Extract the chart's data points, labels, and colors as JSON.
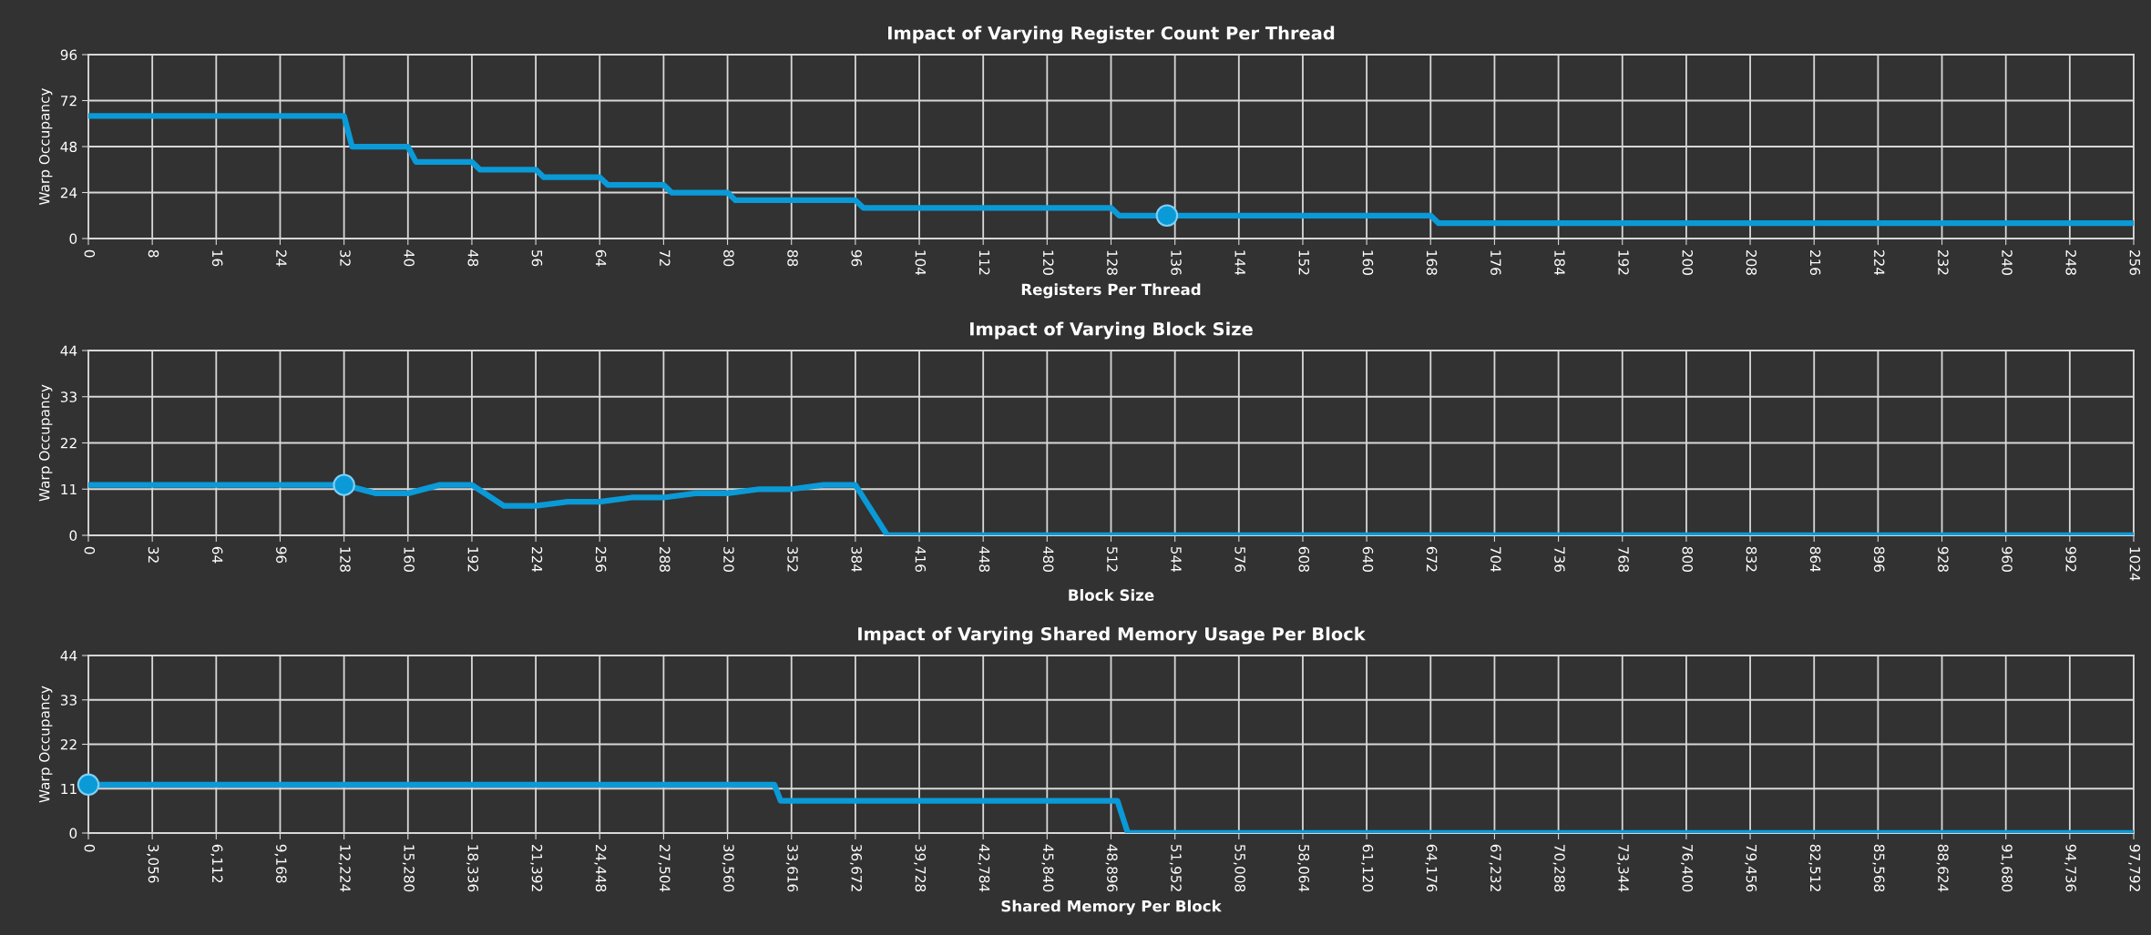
{
  "chart_data": [
    {
      "type": "line",
      "title": "Impact of Varying Register Count Per Thread",
      "xlabel": "Registers Per Thread",
      "ylabel": "Warp Occupancy",
      "grid": true,
      "xlim": [
        0,
        256
      ],
      "ylim": [
        0,
        96
      ],
      "xticks": [
        0,
        8,
        16,
        24,
        32,
        40,
        48,
        56,
        64,
        72,
        80,
        88,
        96,
        104,
        112,
        120,
        128,
        136,
        144,
        152,
        160,
        168,
        176,
        184,
        192,
        200,
        208,
        216,
        224,
        232,
        240,
        248,
        256
      ],
      "yticks": [
        0,
        24,
        48,
        72,
        96
      ],
      "series": [
        {
          "color": "#0a9ad8",
          "x": [
            0,
            32,
            33,
            40,
            41,
            48,
            49,
            56,
            57,
            64,
            65,
            72,
            73,
            80,
            81,
            96,
            97,
            128,
            129,
            168,
            169,
            256
          ],
          "values": [
            64,
            64,
            48,
            48,
            40,
            40,
            36,
            36,
            32,
            32,
            28,
            28,
            24,
            24,
            20,
            20,
            16,
            16,
            12,
            12,
            8,
            8
          ]
        },
        {
          "type": "scatter",
          "marker": "circle",
          "color": "#0a9ad8",
          "x": [
            135
          ],
          "values": [
            12
          ]
        }
      ]
    },
    {
      "type": "line",
      "title": "Impact of Varying Block Size",
      "xlabel": "Block Size",
      "ylabel": "Warp Occupancy",
      "grid": true,
      "xlim": [
        0,
        1024
      ],
      "ylim": [
        0,
        44
      ],
      "xticks": [
        0,
        32,
        64,
        96,
        128,
        160,
        192,
        224,
        256,
        288,
        320,
        352,
        384,
        416,
        448,
        480,
        512,
        544,
        576,
        608,
        640,
        672,
        704,
        736,
        768,
        800,
        832,
        864,
        896,
        928,
        960,
        992,
        1024
      ],
      "yticks": [
        0,
        11,
        22,
        33,
        44
      ],
      "series": [
        {
          "color": "#0a9ad8",
          "x": [
            0,
            128,
            144,
            160,
            176,
            192,
            208,
            224,
            240,
            256,
            272,
            288,
            304,
            320,
            336,
            352,
            368,
            384,
            400,
            1024
          ],
          "values": [
            12,
            12,
            10,
            10,
            12,
            12,
            7,
            7,
            8,
            8,
            9,
            9,
            10,
            10,
            11,
            11,
            12,
            12,
            0,
            0
          ]
        },
        {
          "type": "scatter",
          "marker": "circle",
          "color": "#0a9ad8",
          "x": [
            128
          ],
          "values": [
            12
          ]
        }
      ]
    },
    {
      "type": "line",
      "title": "Impact of Varying Shared Memory Usage Per Block",
      "xlabel": "Shared Memory Per Block",
      "ylabel": "Warp Occupancy",
      "grid": true,
      "xlim": [
        0,
        97792
      ],
      "ylim": [
        0,
        44
      ],
      "xticks": [
        0,
        {
          "value": 3056,
          "label": "3,056"
        },
        {
          "value": 6112,
          "label": "6,112"
        },
        {
          "value": 9168,
          "label": "9,168"
        },
        {
          "value": 12224,
          "label": "12,224"
        },
        {
          "value": 15280,
          "label": "15,280"
        },
        {
          "value": 18336,
          "label": "18,336"
        },
        {
          "value": 21392,
          "label": "21,392"
        },
        {
          "value": 24448,
          "label": "24,448"
        },
        {
          "value": 27504,
          "label": "27,504"
        },
        {
          "value": 30560,
          "label": "30,560"
        },
        {
          "value": 33616,
          "label": "33,616"
        },
        {
          "value": 36672,
          "label": "36,672"
        },
        {
          "value": 39728,
          "label": "39,728"
        },
        {
          "value": 42784,
          "label": "42,784"
        },
        {
          "value": 45840,
          "label": "45,840"
        },
        {
          "value": 48896,
          "label": "48,896"
        },
        {
          "value": 51952,
          "label": "51,952"
        },
        {
          "value": 55008,
          "label": "55,008"
        },
        {
          "value": 58064,
          "label": "58,064"
        },
        {
          "value": 61120,
          "label": "61,120"
        },
        {
          "value": 64176,
          "label": "64,176"
        },
        {
          "value": 67232,
          "label": "67,232"
        },
        {
          "value": 70288,
          "label": "70,288"
        },
        {
          "value": 73344,
          "label": "73,344"
        },
        {
          "value": 76400,
          "label": "76,400"
        },
        {
          "value": 79456,
          "label": "79,456"
        },
        {
          "value": 82512,
          "label": "82,512"
        },
        {
          "value": 85568,
          "label": "85,568"
        },
        {
          "value": 88624,
          "label": "88,624"
        },
        {
          "value": 91680,
          "label": "91,680"
        },
        {
          "value": 94736,
          "label": "94,736"
        },
        {
          "value": 97792,
          "label": "97,792"
        }
      ],
      "yticks": [
        0,
        11,
        22,
        33,
        44
      ],
      "series": [
        {
          "color": "#0a9ad8",
          "x": [
            0,
            32800,
            33100,
            49200,
            49700,
            97792
          ],
          "values": [
            12,
            12,
            8,
            8,
            0,
            0
          ]
        },
        {
          "type": "scatter",
          "marker": "circle",
          "color": "#0a9ad8",
          "x": [
            0
          ],
          "values": [
            12
          ]
        }
      ]
    }
  ]
}
